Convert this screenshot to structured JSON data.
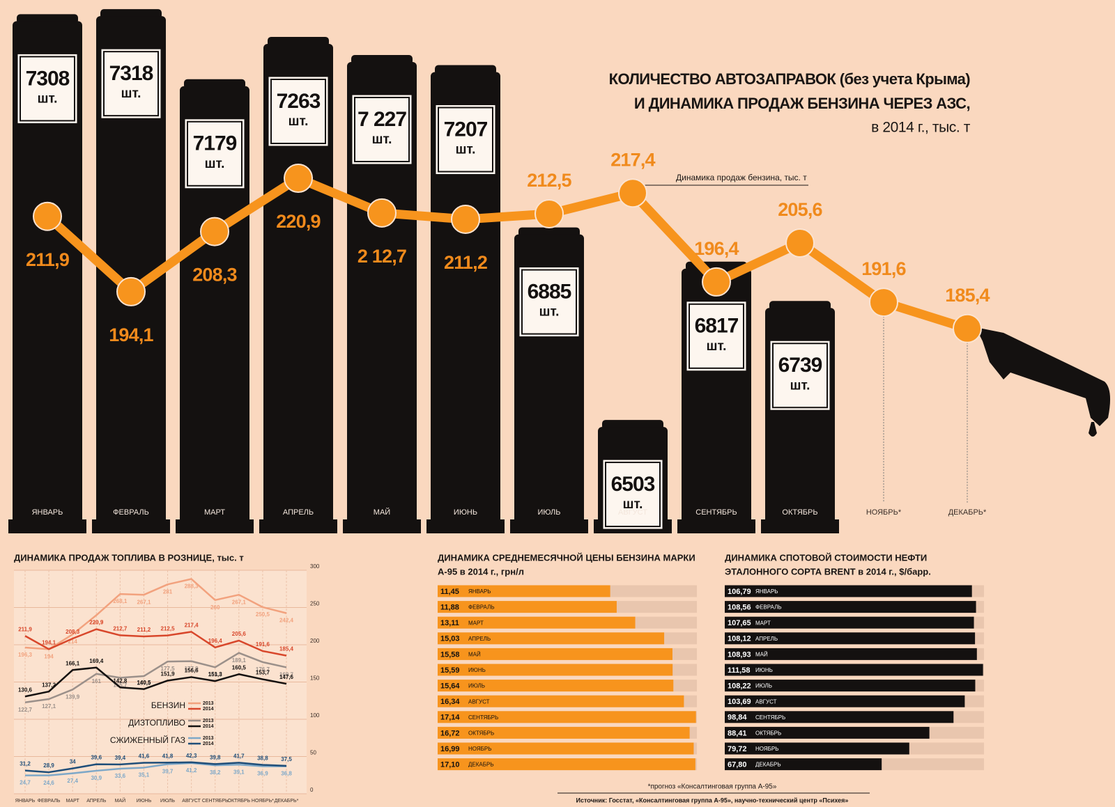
{
  "chart_data": [
    {
      "type": "bar_line",
      "title": [
        "КОЛИЧЕСТВО АВТОЗАПРАВОК (без учета Крыма)",
        "И ДИНАМИКА ПРОДАЖ БЕНЗИНА ЧЕРЕЗ АЗС,",
        "в 2014 г., тыс. т"
      ],
      "annotation": "Динамика продаж бензина, тыс. т",
      "categories": [
        "ЯНВАРЬ",
        "ФЕВРАЛЬ",
        "МАРТ",
        "АПРЕЛЬ",
        "МАЙ",
        "ИЮНЬ",
        "ИЮЛЬ",
        "АВГУСТ",
        "СЕНТЯБРЬ",
        "ОКТЯБРЬ",
        "НОЯБРЬ*",
        "ДЕКАБРЬ*"
      ],
      "bars": {
        "values": [
          7308,
          7318,
          7179,
          7263,
          7227,
          7207,
          6885,
          6503,
          6817,
          6739,
          null,
          null
        ],
        "value_labels": [
          "7308",
          "7318",
          "7179",
          "7263",
          "7 227",
          "7207",
          "6885",
          "6503",
          "6817",
          "6739",
          null,
          null
        ],
        "unit_label": "шт.",
        "color": "#141110"
      },
      "line": {
        "values": [
          211.9,
          194.1,
          208.3,
          220.9,
          212.7,
          211.2,
          212.5,
          217.4,
          196.4,
          205.6,
          191.6,
          185.4
        ],
        "value_labels": [
          "211,9",
          "194,1",
          "208,3",
          "220,9",
          "2 12,7",
          "211,2",
          "212,5",
          "217,4",
          "196,4",
          "205,6",
          "191,6",
          "185,4"
        ],
        "color": "#f7941d",
        "label_color": "#f08a1c",
        "axis": "y2"
      },
      "ylim": [
        6300,
        7350
      ],
      "y2lim": [
        138,
        263
      ]
    },
    {
      "type": "line",
      "title": "ДИНАМИКА ПРОДАЖ ТОПЛИВА В РОЗНИЦЕ, тыс. т",
      "categories": [
        "ЯНВАРЬ",
        "ФЕВРАЛЬ",
        "МАРТ",
        "АПРЕЛЬ",
        "МАЙ",
        "ИЮНЬ",
        "ИЮЛЬ",
        "АВГУСТ",
        "СЕНТЯБРЬ",
        "ОКТЯБРЬ",
        "НОЯБРЬ*",
        "ДЕКАБРЬ*"
      ],
      "series": [
        {
          "group": "БЕНЗИН",
          "name": "2013",
          "color": "#f2a27e",
          "values": [
            196.3,
            194,
            214,
            239.7,
            268.1,
            267.1,
            281,
            288.3,
            260,
            267.1,
            250.5,
            242.4
          ],
          "value_labels": [
            "196,3",
            "194",
            "214",
            "239,7",
            "268,1",
            "267,1",
            "281",
            "288,3",
            "260",
            "267,1",
            "250,5",
            "242,4"
          ]
        },
        {
          "group": "БЕНЗИН",
          "name": "2014",
          "color": "#d8472b",
          "values": [
            211.9,
            194.1,
            208.3,
            220.9,
            212.7,
            211.2,
            212.5,
            217.4,
            196.4,
            205.6,
            191.6,
            185.4
          ],
          "value_labels": [
            "211,9",
            "194,1",
            "208,3",
            "220,9",
            "212,7",
            "211,2",
            "212,5",
            "217,4",
            "196,4",
            "205,6",
            "191,6",
            "185,4"
          ]
        },
        {
          "group": "ДИЗТОПЛИВО",
          "name": "2013",
          "color": "#9b908a",
          "values": [
            122.7,
            127.1,
            139.9,
            161,
            155.7,
            157.9,
            177.5,
            177.9,
            169.8,
            189.1,
            176.7,
            169.7
          ],
          "value_labels": [
            "122,7",
            "127,1",
            "139,9",
            "161",
            "155,7",
            "157,9",
            "177,5",
            "177,9",
            "169,8",
            "189,1",
            "176,7",
            "169,7"
          ]
        },
        {
          "group": "ДИЗТОПЛИВО",
          "name": "2014",
          "color": "#141110",
          "values": [
            130.6,
            137.2,
            166.1,
            169.4,
            142.8,
            140.5,
            151.9,
            156.6,
            151.3,
            160.5,
            153.7,
            147.6
          ],
          "value_labels": [
            "130,6",
            "137,2",
            "166,1",
            "169,4",
            "142,8",
            "140,5",
            "151,9",
            "156,6",
            "151,3",
            "160,5",
            "153,7",
            "147,6"
          ]
        },
        {
          "group": "СЖИЖЕННЫЙ ГАЗ",
          "name": "2013",
          "color": "#7ea8c8",
          "values": [
            24.7,
            24.6,
            27.4,
            30.9,
            33.6,
            35.1,
            39.7,
            41.2,
            38.2,
            39.1,
            36.9,
            36.8
          ],
          "value_labels": [
            "24,7",
            "24,6",
            "27,4",
            "30,9",
            "33,6",
            "35,1",
            "39,7",
            "41,2",
            "38,2",
            "39,1",
            "36,9",
            "36,8"
          ]
        },
        {
          "group": "СЖИЖЕННЫЙ ГАЗ",
          "name": "2014",
          "color": "#1f4e79",
          "values": [
            31.2,
            28.9,
            34,
            39.6,
            39.4,
            41.6,
            41.8,
            42.3,
            39.8,
            41.7,
            38.8,
            37.5
          ],
          "value_labels": [
            "31,2",
            "28,9",
            "34",
            "39,6",
            "39,4",
            "41,6",
            "41,8",
            "42,3",
            "39,8",
            "41,7",
            "38,8",
            "37,5"
          ]
        }
      ],
      "ylim": [
        0,
        300
      ],
      "yticks": [
        0,
        50,
        100,
        150,
        200,
        250,
        300
      ],
      "grid": true
    },
    {
      "type": "hbar",
      "title": [
        "ДИНАМИКА СРЕДНЕМЕСЯЧНОЙ ЦЕНЫ БЕНЗИНА МАРКИ",
        "А-95 в 2014 г., грн/л"
      ],
      "categories": [
        "ЯНВАРЬ",
        "ФЕВРАЛЬ",
        "МАРТ",
        "АПРЕЛЬ",
        "МАЙ",
        "ИЮНЬ",
        "ИЮЛЬ",
        "АВГУСТ",
        "СЕНТЯБРЬ",
        "ОКТЯБРЬ",
        "НОЯБРЬ",
        "ДЕКАБРЬ"
      ],
      "values": [
        11.45,
        11.88,
        13.11,
        15.03,
        15.58,
        15.59,
        15.64,
        16.34,
        17.14,
        16.72,
        16.99,
        17.1
      ],
      "value_labels": [
        "11,45",
        "11,88",
        "13,11",
        "15,03",
        "15,58",
        "15,59",
        "15,64",
        "16,34",
        "17,14",
        "16,72",
        "16,99",
        "17,10"
      ],
      "color": "#f7941d",
      "track_color": "#e9c6ae",
      "text_color": "#141110",
      "xlim": [
        0,
        17.2
      ]
    },
    {
      "type": "hbar",
      "title": [
        "ДИНАМИКА СПОТОВОЙ СТОИМОСТИ НЕФТИ",
        "ЭТАЛОННОГО СОРТА BRENT в 2014 г., $/барр."
      ],
      "categories": [
        "ЯНВАРЬ",
        "ФЕВРАЛЬ",
        "МАРТ",
        "АПРЕЛЬ",
        "МАЙ",
        "ИЮНЬ",
        "ИЮЛЬ",
        "АВГУСТ",
        "СЕНТЯБРЬ",
        "ОКТЯБРЬ",
        "НОЯБРЬ",
        "ДЕКАБРЬ"
      ],
      "values": [
        106.79,
        108.56,
        107.65,
        108.12,
        108.93,
        111.58,
        108.22,
        103.69,
        98.84,
        88.41,
        79.72,
        67.8
      ],
      "value_labels": [
        "106,79",
        "108,56",
        "107,65",
        "108,12",
        "108,93",
        "111,58",
        "108,22",
        "103,69",
        "98,84",
        "88,41",
        "79,72",
        "67,80"
      ],
      "color": "#141110",
      "track_color": "#e9c6ae",
      "text_color": "#ffffff",
      "xlim": [
        0,
        112
      ]
    }
  ],
  "footer": {
    "note": "*прогноз «Консалтинговая группа А-95»",
    "source": "Источник: Госстат, «Консалтинговая группа А-95», научно-технический центр «Психея»"
  }
}
